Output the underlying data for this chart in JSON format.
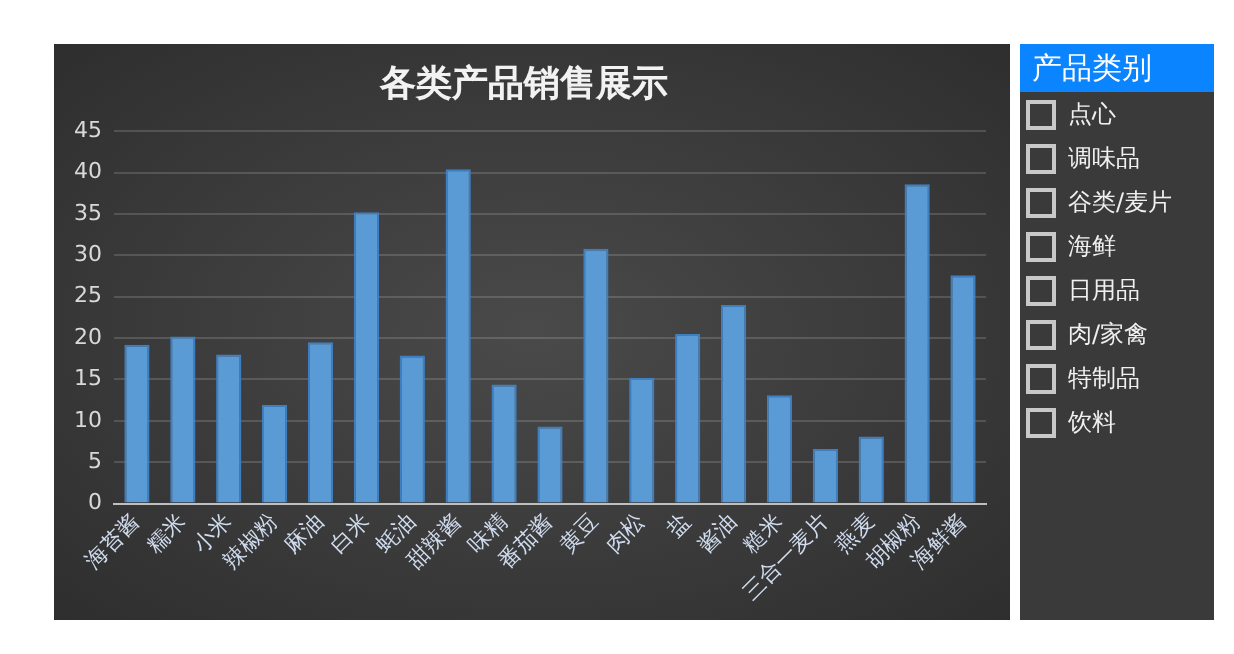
{
  "chart_data": {
    "type": "bar",
    "title": "各类产品销售展示",
    "legend_title": "产品类别",
    "categories": [
      "海苔酱",
      "糯米",
      "小米",
      "辣椒粉",
      "麻油",
      "白米",
      "蚝油",
      "甜辣酱",
      "味精",
      "番茄酱",
      "黄豆",
      "肉松",
      "盐",
      "酱油",
      "糙米",
      "三合一麦片",
      "燕麦",
      "胡椒粉",
      "海鲜酱"
    ],
    "values": [
      19.2,
      20.2,
      18.0,
      11.9,
      19.5,
      35.2,
      17.9,
      40.4,
      14.4,
      9.3,
      30.8,
      15.2,
      20.5,
      24.0,
      13.1,
      6.6,
      8.1,
      38.6,
      27.6
    ],
    "color": "#5b9bd5",
    "ylim": [
      0,
      45
    ],
    "yticks": [
      0,
      5,
      10,
      15,
      20,
      25,
      30,
      35,
      40,
      45
    ],
    "grid": "y",
    "legend": false,
    "annotations": [
      "点心",
      "调味品",
      "谷类/麦片",
      "海鲜",
      "日用品",
      "肉/家禽",
      "特制品",
      "饮料"
    ]
  }
}
